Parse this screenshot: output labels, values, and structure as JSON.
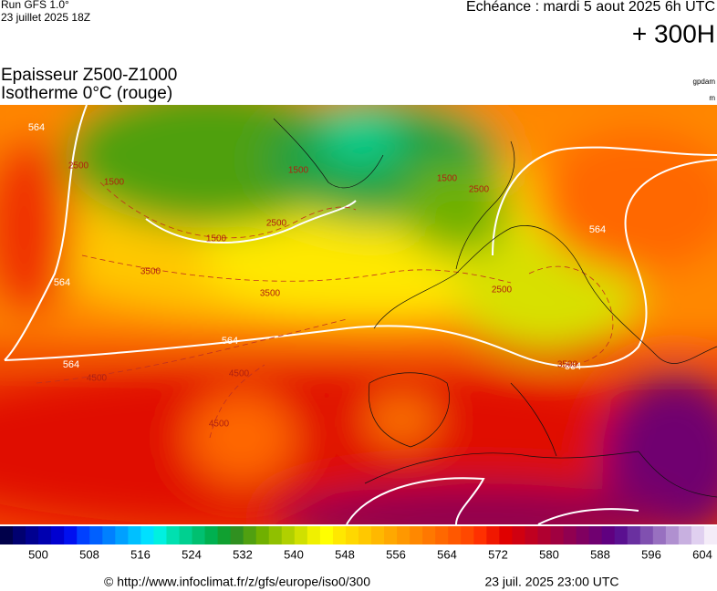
{
  "header": {
    "run": "Run GFS 1.0°",
    "run_date": "23 juillet 2025 18Z",
    "echeance": "Echéance : mardi 5 aout 2025 6h UTC",
    "offset": "+ 300H"
  },
  "title": {
    "line1": "Epaisseur Z500-Z1000",
    "line2": "Isotherme 0°C (rouge)",
    "unit1": "gpdam",
    "unit2": "m"
  },
  "map": {
    "thickness_labels": [
      564,
      564,
      564,
      564,
      564,
      564
    ],
    "isotherm_labels": [
      1500,
      1500,
      1500,
      1500,
      2500,
      2500,
      2500,
      2500,
      3500,
      3500,
      3500,
      4500,
      4500,
      4500
    ]
  },
  "colorbar": {
    "ticks": [
      500,
      508,
      516,
      524,
      532,
      540,
      548,
      556,
      564,
      572,
      580,
      588,
      596,
      604
    ],
    "colors": [
      "#00004a",
      "#000070",
      "#000090",
      "#0000b0",
      "#0000d0",
      "#0010f0",
      "#0040ff",
      "#0060ff",
      "#0080ff",
      "#00a0ff",
      "#00c0ff",
      "#00e0ff",
      "#00f0e0",
      "#00e0b0",
      "#00d090",
      "#00c070",
      "#00b050",
      "#10a030",
      "#309020",
      "#50a010",
      "#70b000",
      "#90c000",
      "#b0d000",
      "#d0e000",
      "#f0f000",
      "#ffff00",
      "#ffe800",
      "#ffd800",
      "#ffc800",
      "#ffb800",
      "#ffa800",
      "#ff9800",
      "#ff8800",
      "#ff7800",
      "#ff6800",
      "#ff5800",
      "#ff4800",
      "#ff3000",
      "#f01800",
      "#e00000",
      "#d00010",
      "#c00020",
      "#b00030",
      "#a00040",
      "#900050",
      "#800060",
      "#700070",
      "#600080",
      "#5a1090",
      "#6a30a0",
      "#8050b0",
      "#9870c0",
      "#b090d0",
      "#c8b0e0",
      "#e0d0f0",
      "#f4ecf8"
    ]
  },
  "footer": {
    "url": "© http://www.infoclimat.fr/z/gfs/europe/iso0/300",
    "generated": "23 juil. 2025 23:00 UTC"
  }
}
